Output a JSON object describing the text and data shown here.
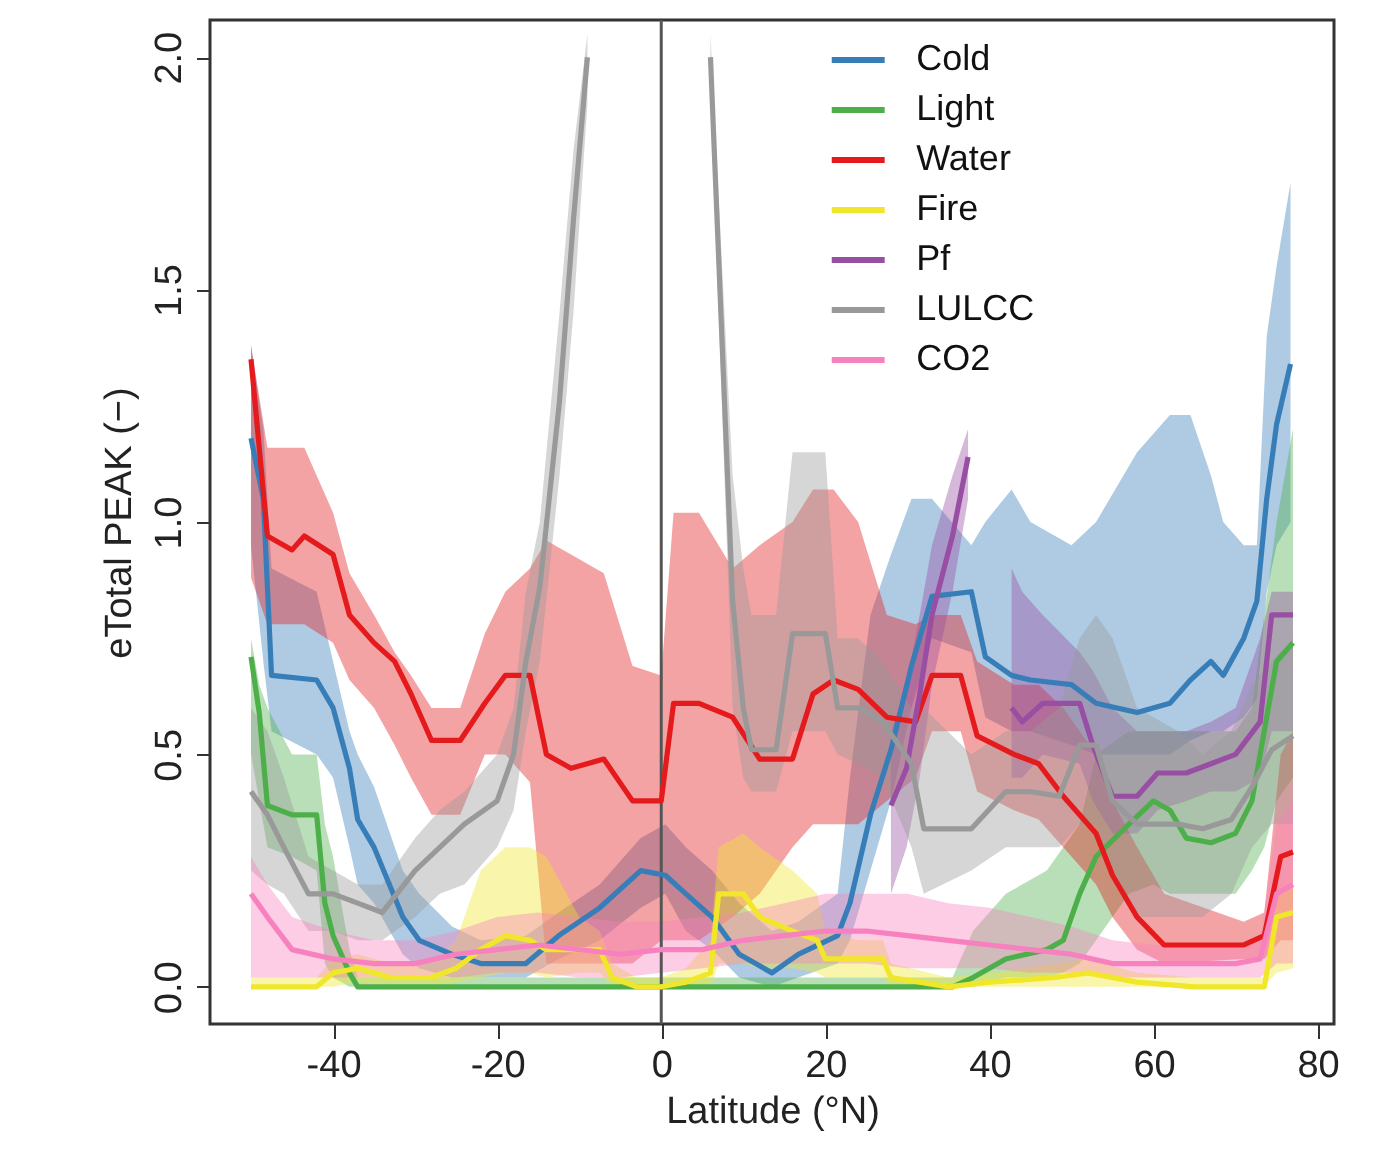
{
  "chart_data": {
    "type": "line",
    "xlabel": "Latitude (°N)",
    "ylabel": "eTotal PEAK (−)",
    "xlim": [
      -55,
      82
    ],
    "xticks": [
      -40,
      -20,
      0,
      20,
      40,
      60,
      80
    ],
    "ylim": [
      -0.08,
      2.08
    ],
    "yticks": [
      {
        "value": 0,
        "label": "0.0"
      },
      {
        "value": 0.5,
        "label": "0.5"
      },
      {
        "value": 1,
        "label": "1.0"
      },
      {
        "value": 1.5,
        "label": "1.5"
      },
      {
        "value": 2,
        "label": "2.0"
      }
    ],
    "legend": "top right",
    "ref_lines": [
      {
        "axis": "x",
        "value": 0,
        "color": "#555555"
      }
    ],
    "series": [
      {
        "name": "Cold",
        "color": "#377eb8",
        "x": [
          -50,
          -48.5,
          -47.5,
          -42,
          -40,
          -38,
          -37,
          -35,
          -31.5,
          -29.5,
          -25.5,
          -22,
          -16.5,
          -12.5,
          -7.5,
          -2.5,
          0.5,
          3,
          6.2,
          9.5,
          13.5,
          16.7,
          21.5,
          23,
          25.5,
          28,
          30.5,
          33,
          37.8,
          39.5,
          42.7,
          45,
          50,
          53,
          58,
          62,
          64.5,
          67,
          68.5,
          71,
          72.6,
          73.8,
          75,
          76.7
        ],
        "values": [
          1.18,
          1.05,
          0.67,
          0.66,
          0.6,
          0.47,
          0.36,
          0.3,
          0.15,
          0.1,
          0.07,
          0.05,
          0.05,
          0.11,
          0.17,
          0.25,
          0.24,
          0.2,
          0.15,
          0.07,
          0.03,
          0.07,
          0.11,
          0.18,
          0.37,
          0.51,
          0.69,
          0.84,
          0.85,
          0.71,
          0.67,
          0.66,
          0.65,
          0.61,
          0.59,
          0.61,
          0.66,
          0.7,
          0.67,
          0.75,
          0.83,
          1.05,
          1.21,
          1.34
        ],
        "upper": [
          1.38,
          1.2,
          0.9,
          0.85,
          0.7,
          0.55,
          0.5,
          0.43,
          0.25,
          0.2,
          0.13,
          0.1,
          0.11,
          0.16,
          0.22,
          0.32,
          0.35,
          0.3,
          0.25,
          0.18,
          0.12,
          0.14,
          0.2,
          0.45,
          0.8,
          0.93,
          1.05,
          1.05,
          0.95,
          1.0,
          1.07,
          1.0,
          0.95,
          1.0,
          1.15,
          1.23,
          1.23,
          1.1,
          1.0,
          0.95,
          0.95,
          1.4,
          1.55,
          1.73
        ],
        "lower": [
          0.95,
          0.7,
          0.55,
          0.5,
          0.45,
          0.3,
          0.22,
          0.18,
          0.07,
          0.04,
          0.02,
          0.02,
          0.02,
          0.06,
          0.1,
          0.17,
          0.2,
          0.12,
          0.08,
          0.02,
          0.0,
          0.02,
          0.05,
          0.1,
          0.25,
          0.4,
          0.6,
          0.75,
          0.72,
          0.58,
          0.55,
          0.55,
          0.52,
          0.5,
          0.5,
          0.5,
          0.53,
          0.55,
          0.55,
          0.58,
          0.62,
          0.85,
          0.95,
          1.0
        ]
      },
      {
        "name": "Light",
        "color": "#4daf4a",
        "x": [
          -50,
          -49,
          -48,
          -45,
          -42,
          -41,
          -40,
          -38,
          -37,
          0,
          35.5,
          38,
          42,
          47,
          49,
          51,
          53,
          57,
          60,
          62,
          64,
          67,
          70,
          72,
          73.5,
          75,
          77
        ],
        "values": [
          0.71,
          0.59,
          0.39,
          0.37,
          0.37,
          0.18,
          0.11,
          0.03,
          0,
          0,
          0,
          0.02,
          0.06,
          0.08,
          0.1,
          0.2,
          0.28,
          0.35,
          0.4,
          0.38,
          0.32,
          0.31,
          0.33,
          0.4,
          0.55,
          0.7,
          0.74
        ],
        "upper": [
          0.75,
          0.65,
          0.6,
          0.5,
          0.5,
          0.35,
          0.28,
          0.08,
          0.02,
          0.02,
          0.02,
          0.12,
          0.2,
          0.25,
          0.3,
          0.35,
          0.5,
          0.55,
          0.55,
          0.55,
          0.55,
          0.55,
          0.55,
          0.6,
          0.8,
          1.0,
          1.2
        ],
        "lower": [
          0.5,
          0.4,
          0.3,
          0.28,
          0.25,
          0.05,
          0.02,
          0,
          0,
          0,
          0,
          0,
          0.02,
          0.02,
          0.03,
          0.05,
          0.1,
          0.2,
          0.22,
          0.2,
          0.2,
          0.2,
          0.2,
          0.25,
          0.3,
          0.4,
          0.45
        ]
      },
      {
        "name": "Water",
        "color": "#e41a1c",
        "x": [
          -50,
          -48,
          -45,
          -43.5,
          -40,
          -38,
          -35,
          -32.5,
          -30.5,
          -28,
          -24.5,
          -21.5,
          -19,
          -16,
          -14,
          -11,
          -7,
          -3.5,
          0,
          1.5,
          4.6,
          8.7,
          12,
          16,
          18.5,
          21,
          24,
          27.5,
          31,
          33,
          36.5,
          38.5,
          43,
          46,
          49,
          53,
          55,
          58,
          61.3,
          71,
          73.5,
          75.5,
          77
        ],
        "values": [
          1.35,
          0.97,
          0.94,
          0.97,
          0.93,
          0.8,
          0.74,
          0.7,
          0.63,
          0.53,
          0.53,
          0.61,
          0.67,
          0.67,
          0.5,
          0.47,
          0.49,
          0.4,
          0.4,
          0.61,
          0.61,
          0.58,
          0.49,
          0.49,
          0.63,
          0.66,
          0.64,
          0.58,
          0.57,
          0.67,
          0.67,
          0.54,
          0.5,
          0.48,
          0.41,
          0.33,
          0.24,
          0.15,
          0.09,
          0.09,
          0.11,
          0.28,
          0.29
        ],
        "upper": [
          1.38,
          1.16,
          1.16,
          1.16,
          1.02,
          0.89,
          0.8,
          0.72,
          0.67,
          0.6,
          0.6,
          0.76,
          0.85,
          0.9,
          0.96,
          0.93,
          0.89,
          0.69,
          0.67,
          1.02,
          1.02,
          0.9,
          0.95,
          1.0,
          1.07,
          1.07,
          1.0,
          0.8,
          0.78,
          0.8,
          0.8,
          0.7,
          0.65,
          0.65,
          0.6,
          0.5,
          0.4,
          0.3,
          0.2,
          0.14,
          0.16,
          0.5,
          0.55
        ],
        "lower": [
          0.88,
          0.78,
          0.78,
          0.78,
          0.74,
          0.66,
          0.6,
          0.52,
          0.45,
          0.37,
          0.37,
          0.5,
          0.5,
          0.44,
          0.05,
          0.05,
          0.05,
          0.05,
          0.1,
          0.1,
          0.1,
          0.15,
          0.2,
          0.3,
          0.35,
          0.35,
          0.35,
          0.4,
          0.45,
          0.55,
          0.55,
          0.42,
          0.38,
          0.36,
          0.3,
          0.22,
          0.15,
          0.08,
          0.05,
          0.06,
          0.06,
          0.1,
          0.1
        ]
      },
      {
        "name": "Fire",
        "color": "#f0e62a",
        "x": [
          -50,
          -42,
          -40,
          -37,
          -33,
          -28,
          -25,
          -22,
          -19,
          -16,
          -14,
          -10,
          -7.5,
          -6,
          -3,
          0,
          3,
          6,
          7,
          10,
          12,
          16,
          19,
          20,
          24,
          27,
          28,
          35,
          40,
          48,
          52,
          58,
          65,
          73.5,
          75,
          77
        ],
        "values": [
          0,
          0,
          0.03,
          0.04,
          0.02,
          0.02,
          0.04,
          0.08,
          0.11,
          0.1,
          0.08,
          0.08,
          0.08,
          0.02,
          0,
          0,
          0.01,
          0.03,
          0.2,
          0.2,
          0.15,
          0.12,
          0.1,
          0.06,
          0.06,
          0.06,
          0.02,
          0,
          0.01,
          0.02,
          0.03,
          0.01,
          0,
          0,
          0.15,
          0.16
        ],
        "upper": [
          0.02,
          0.02,
          0.06,
          0.07,
          0.05,
          0.05,
          0.1,
          0.25,
          0.3,
          0.3,
          0.28,
          0.15,
          0.12,
          0.05,
          0.02,
          0.02,
          0.04,
          0.1,
          0.3,
          0.33,
          0.3,
          0.25,
          0.2,
          0.12,
          0.1,
          0.1,
          0.05,
          0.02,
          0.03,
          0.05,
          0.06,
          0.03,
          0.02,
          0.02,
          0.2,
          0.22
        ],
        "lower": [
          0,
          0,
          0,
          0.01,
          0,
          0,
          0.01,
          0.02,
          0.03,
          0.03,
          0.02,
          0.03,
          0.03,
          0,
          0,
          0,
          0,
          0,
          0.05,
          0.05,
          0.04,
          0.04,
          0.03,
          0.02,
          0.02,
          0.02,
          0,
          0,
          0,
          0,
          0,
          0,
          0,
          0,
          0.03,
          0.04
        ]
      },
      {
        "name": "Pf",
        "color": "#984ea3",
        "x": [
          28,
          29.9,
          31.5,
          33,
          35.5,
          37.4,
          40,
          42.7,
          44,
          46.5,
          51,
          52.6,
          55,
          58,
          60.5,
          64,
          67,
          70,
          73,
          74.4,
          77
        ],
        "values": [
          0.39,
          0.47,
          0.63,
          0.8,
          0.97,
          1.14,
          null,
          0.6,
          0.57,
          0.61,
          0.61,
          0.52,
          0.41,
          0.41,
          0.46,
          0.46,
          0.48,
          0.5,
          0.57,
          0.8,
          0.8
        ],
        "upper": [
          0.55,
          0.65,
          0.8,
          0.95,
          1.1,
          1.2,
          null,
          0.9,
          0.85,
          0.8,
          0.72,
          0.68,
          0.6,
          0.55,
          0.55,
          0.55,
          0.57,
          0.6,
          0.75,
          0.85,
          0.85
        ],
        "lower": [
          0.2,
          0.3,
          0.45,
          0.65,
          0.85,
          1.05,
          null,
          0.45,
          0.45,
          0.5,
          0.48,
          0.4,
          0.33,
          0.33,
          0.38,
          0.4,
          0.42,
          0.42,
          0.45,
          0.55,
          0.55
        ]
      },
      {
        "name": "LULCC",
        "color": "#999999",
        "x": [
          -50,
          -48,
          -46,
          -43,
          -40,
          -37,
          -34,
          -30,
          -27,
          -24,
          -20,
          -18,
          -16.5,
          -14.8,
          -12.4,
          -10.7,
          -9,
          -2,
          6,
          8.7,
          10,
          11,
          14,
          16,
          20,
          21.5,
          24,
          27,
          30.5,
          32,
          37.8,
          42,
          45,
          48.5,
          51,
          53,
          55,
          58,
          63,
          66,
          69.5,
          72,
          74.4,
          77
        ],
        "values": [
          0.42,
          0.37,
          0.3,
          0.2,
          0.2,
          0.18,
          0.16,
          0.25,
          0.3,
          0.35,
          0.4,
          0.5,
          0.7,
          0.86,
          1.26,
          1.65,
          2.0,
          null,
          2.0,
          0.83,
          0.6,
          0.51,
          0.51,
          0.76,
          0.76,
          0.6,
          0.6,
          0.57,
          0.48,
          0.34,
          0.34,
          0.42,
          0.42,
          0.41,
          0.52,
          0.52,
          0.4,
          0.35,
          0.35,
          0.34,
          0.36,
          0.43,
          0.51,
          0.54
        ],
        "upper": [
          0.6,
          0.55,
          0.45,
          0.28,
          0.25,
          0.22,
          0.22,
          0.32,
          0.38,
          0.42,
          0.5,
          0.6,
          0.85,
          1.0,
          1.45,
          1.8,
          2.05,
          null,
          2.05,
          1.1,
          0.9,
          0.8,
          0.8,
          1.15,
          1.15,
          0.75,
          0.75,
          0.7,
          0.6,
          0.6,
          0.5,
          0.55,
          0.55,
          0.6,
          0.75,
          0.8,
          0.75,
          0.6,
          0.55,
          0.5,
          0.55,
          0.65,
          0.7,
          0.75
        ],
        "lower": [
          0.25,
          0.22,
          0.2,
          0.12,
          0.12,
          0.1,
          0.1,
          0.15,
          0.2,
          0.22,
          0.3,
          0.38,
          0.55,
          0.7,
          1.1,
          1.45,
          1.9,
          null,
          1.95,
          0.6,
          0.45,
          0.42,
          0.42,
          0.55,
          0.55,
          0.5,
          0.48,
          0.45,
          0.3,
          0.2,
          0.25,
          0.3,
          0.3,
          0.3,
          0.35,
          0.35,
          0.25,
          0.15,
          0.15,
          0.15,
          0.2,
          0.3,
          0.35,
          0.35
        ]
      },
      {
        "name": "CO2",
        "color": "#f781bf",
        "x": [
          -50,
          -48,
          -45,
          -40,
          -35,
          -30,
          -25,
          -20,
          -15,
          -10,
          -5,
          0,
          5,
          10,
          15,
          20,
          25,
          30,
          35,
          40,
          45,
          50,
          55,
          60,
          65,
          70,
          73,
          75,
          77
        ],
        "values": [
          0.2,
          0.15,
          0.08,
          0.06,
          0.05,
          0.05,
          0.07,
          0.08,
          0.09,
          0.08,
          0.07,
          0.08,
          0.08,
          0.1,
          0.11,
          0.12,
          0.12,
          0.11,
          0.1,
          0.09,
          0.08,
          0.07,
          0.05,
          0.05,
          0.05,
          0.05,
          0.06,
          0.2,
          0.22
        ],
        "upper": [
          0.28,
          0.22,
          0.15,
          0.12,
          0.1,
          0.1,
          0.12,
          0.15,
          0.16,
          0.15,
          0.14,
          0.14,
          0.15,
          0.16,
          0.18,
          0.2,
          0.2,
          0.2,
          0.18,
          0.17,
          0.15,
          0.13,
          0.1,
          0.09,
          0.09,
          0.09,
          0.1,
          0.35,
          0.4
        ],
        "lower": [
          0.02,
          0.02,
          0.02,
          0.02,
          0.02,
          0.02,
          0.02,
          0.03,
          0.03,
          0.02,
          0.02,
          0.03,
          0.04,
          0.05,
          0.05,
          0.05,
          0.05,
          0.04,
          0.04,
          0.04,
          0.03,
          0.03,
          0.02,
          0.02,
          0.02,
          0.02,
          0.02,
          0.05,
          0.05
        ]
      }
    ]
  }
}
